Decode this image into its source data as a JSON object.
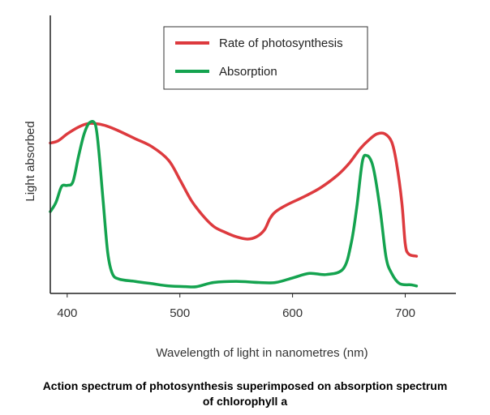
{
  "chart_data": {
    "type": "line",
    "title": "",
    "xlabel": "Wavelength of light in nanometres (nm)",
    "ylabel": "Light absorbed",
    "xlim": [
      385,
      745
    ],
    "ylim": [
      0,
      1
    ],
    "x_ticks": [
      400,
      500,
      600,
      700
    ],
    "y_ticks": [],
    "grid": false,
    "legend_position": "top-center",
    "series": [
      {
        "name": "Rate of photosynthesis",
        "color": "#dd3a3e",
        "points": [
          [
            385,
            0.64
          ],
          [
            392,
            0.65
          ],
          [
            400,
            0.68
          ],
          [
            410,
            0.71
          ],
          [
            418,
            0.725
          ],
          [
            426,
            0.725
          ],
          [
            435,
            0.715
          ],
          [
            445,
            0.695
          ],
          [
            460,
            0.66
          ],
          [
            475,
            0.625
          ],
          [
            490,
            0.565
          ],
          [
            500,
            0.48
          ],
          [
            510,
            0.39
          ],
          [
            520,
            0.325
          ],
          [
            530,
            0.275
          ],
          [
            540,
            0.25
          ],
          [
            550,
            0.23
          ],
          [
            560,
            0.22
          ],
          [
            568,
            0.23
          ],
          [
            575,
            0.26
          ],
          [
            580,
            0.31
          ],
          [
            585,
            0.34
          ],
          [
            595,
            0.37
          ],
          [
            610,
            0.405
          ],
          [
            625,
            0.445
          ],
          [
            640,
            0.5
          ],
          [
            650,
            0.55
          ],
          [
            660,
            0.615
          ],
          [
            668,
            0.655
          ],
          [
            675,
            0.68
          ],
          [
            682,
            0.68
          ],
          [
            688,
            0.645
          ],
          [
            692,
            0.56
          ],
          [
            697,
            0.38
          ],
          [
            700,
            0.2
          ],
          [
            703,
            0.155
          ],
          [
            710,
            0.145
          ]
        ]
      },
      {
        "name": "Absorption",
        "color": "#14a34f",
        "points": [
          [
            385,
            0.34
          ],
          [
            390,
            0.38
          ],
          [
            395,
            0.45
          ],
          [
            400,
            0.455
          ],
          [
            405,
            0.47
          ],
          [
            410,
            0.58
          ],
          [
            415,
            0.68
          ],
          [
            420,
            0.73
          ],
          [
            425,
            0.72
          ],
          [
            428,
            0.61
          ],
          [
            432,
            0.38
          ],
          [
            436,
            0.16
          ],
          [
            440,
            0.07
          ],
          [
            446,
            0.045
          ],
          [
            460,
            0.035
          ],
          [
            475,
            0.025
          ],
          [
            490,
            0.015
          ],
          [
            505,
            0.012
          ],
          [
            515,
            0.012
          ],
          [
            530,
            0.03
          ],
          [
            550,
            0.035
          ],
          [
            570,
            0.03
          ],
          [
            585,
            0.03
          ],
          [
            600,
            0.05
          ],
          [
            615,
            0.07
          ],
          [
            630,
            0.065
          ],
          [
            645,
            0.09
          ],
          [
            652,
            0.2
          ],
          [
            657,
            0.36
          ],
          [
            662,
            0.56
          ],
          [
            666,
            0.585
          ],
          [
            670,
            0.56
          ],
          [
            673,
            0.5
          ],
          [
            678,
            0.34
          ],
          [
            683,
            0.14
          ],
          [
            688,
            0.07
          ],
          [
            695,
            0.025
          ],
          [
            705,
            0.02
          ],
          [
            710,
            0.015
          ]
        ]
      }
    ]
  },
  "caption": {
    "line1": "Action spectrum of photosynthesis superimposed on absorption spectrum",
    "line2": "of chlorophyll a"
  }
}
